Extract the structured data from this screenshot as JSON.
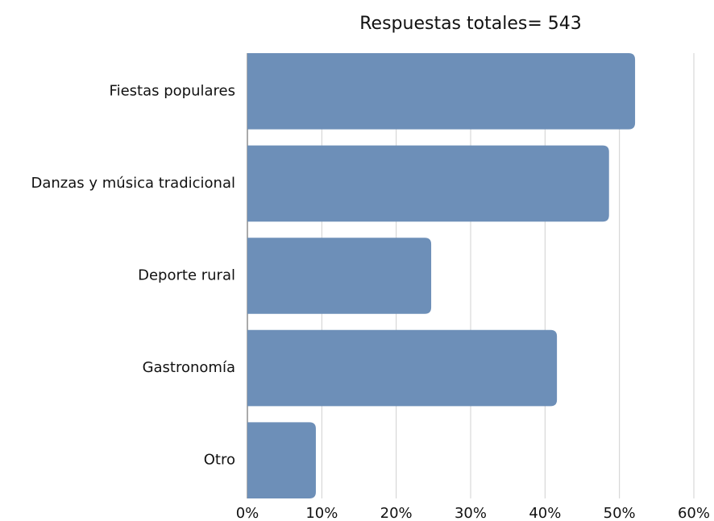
{
  "chart_data": {
    "type": "bar",
    "orientation": "horizontal",
    "title": "Respuestas totales= 543",
    "categories": [
      "Fiestas populares",
      "Danzas y música tradicional",
      "Deporte rural",
      "Gastronomía",
      "Otro"
    ],
    "values": [
      52.1,
      48.6,
      24.7,
      41.6,
      9.2
    ],
    "color": "#6d8fb8",
    "xlim": [
      0,
      60
    ],
    "xticks": [
      {
        "value": 0,
        "label": "0%"
      },
      {
        "value": 10,
        "label": "10%"
      },
      {
        "value": 20,
        "label": "20%"
      },
      {
        "value": 30,
        "label": "30%"
      },
      {
        "value": 40,
        "label": "40%"
      },
      {
        "value": 50,
        "label": "50%"
      },
      {
        "value": 60,
        "label": "60%"
      }
    ],
    "grid": true
  }
}
